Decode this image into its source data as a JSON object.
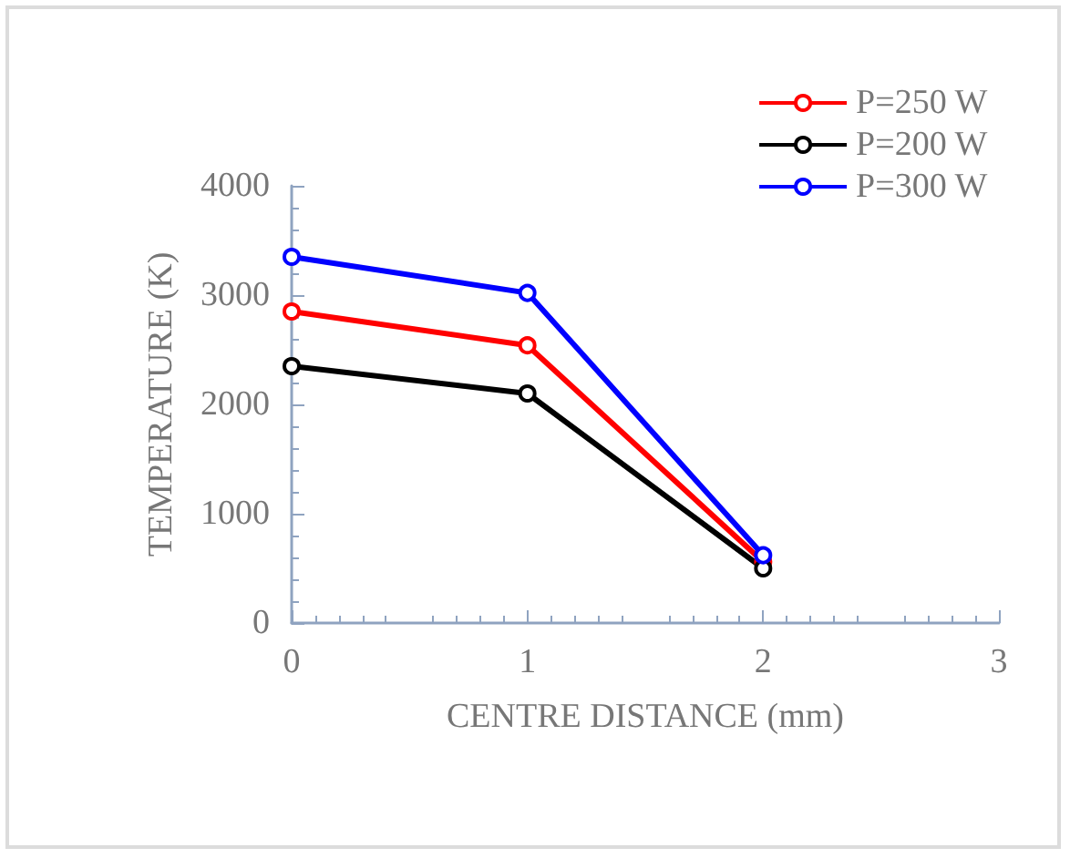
{
  "chart_data": {
    "type": "line",
    "xlabel": "CENTRE DISTANCE (mm)",
    "ylabel": "TEMPERATURE (K)",
    "x": [
      0,
      1,
      2
    ],
    "series": [
      {
        "name": "P=250 W",
        "color": "#ff0000",
        "values": [
          2850,
          2540,
          560
        ]
      },
      {
        "name": "P=200 W",
        "color": "#000000",
        "values": [
          2350,
          2100,
          500
        ]
      },
      {
        "name": "P=300 W",
        "color": "#0000ff",
        "values": [
          3350,
          3020,
          620
        ]
      }
    ],
    "xlim": [
      0,
      3
    ],
    "xticks": [
      0,
      1,
      2,
      3
    ],
    "ylim": [
      0,
      4000
    ],
    "yticks": [
      0,
      1000,
      2000,
      3000,
      4000
    ],
    "grid": false,
    "legend": "top right",
    "marker": "circle",
    "line_style": "solid"
  }
}
